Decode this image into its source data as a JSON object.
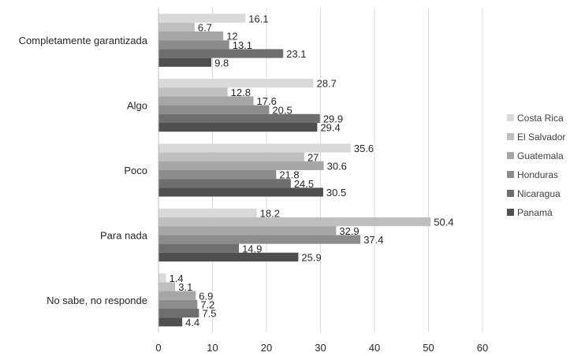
{
  "chart_data": {
    "type": "bar",
    "orientation": "horizontal",
    "categories": [
      "Completamente garantizada",
      "Algo",
      "Poco",
      "Para nada",
      "No sabe, no responde"
    ],
    "series": [
      {
        "name": "Costa Rica",
        "color": "#d9d9d9",
        "values": [
          16.1,
          28.7,
          35.6,
          18.2,
          1.4
        ]
      },
      {
        "name": "El Salvador",
        "color": "#bfbfbf",
        "values": [
          6.7,
          12.8,
          27,
          50.4,
          3.1
        ]
      },
      {
        "name": "Guatemala",
        "color": "#a6a6a6",
        "values": [
          12,
          17.6,
          30.6,
          32.9,
          6.9
        ]
      },
      {
        "name": "Honduras",
        "color": "#8c8c8c",
        "values": [
          13.1,
          20.5,
          21.8,
          37.4,
          7.2
        ]
      },
      {
        "name": "Nicaragua",
        "color": "#6e6e6e",
        "values": [
          23.1,
          29.9,
          24.5,
          14.9,
          7.5
        ]
      },
      {
        "name": "Panamá",
        "color": "#4f4f4f",
        "values": [
          9.8,
          29.4,
          30.5,
          25.9,
          4.4
        ]
      }
    ],
    "xlim": [
      0,
      60
    ],
    "xticks": [
      0,
      10,
      20,
      30,
      40,
      50,
      60
    ],
    "grid": true,
    "legend_position": "right",
    "title": "",
    "xlabel": "",
    "ylabel": ""
  }
}
